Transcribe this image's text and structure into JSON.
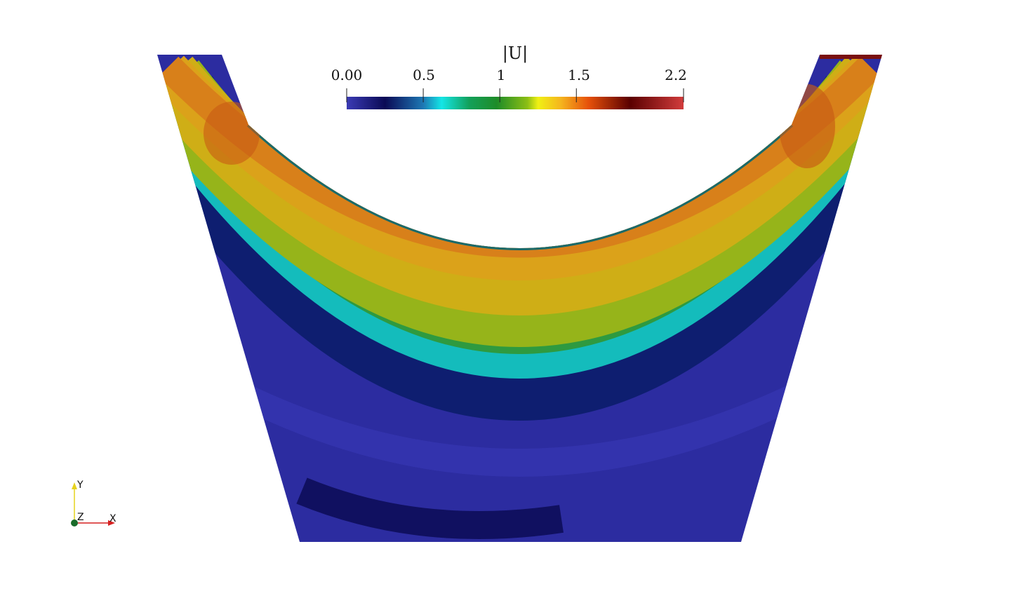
{
  "colorbar": {
    "title": "|U|",
    "ticks": [
      {
        "value": 0.0,
        "label": "0.00"
      },
      {
        "value": 0.5,
        "label": "0.5"
      },
      {
        "value": 1.0,
        "label": "1"
      },
      {
        "value": 1.5,
        "label": "1.5"
      },
      {
        "value": 2.2,
        "label": "2.2"
      }
    ],
    "range": [
      0.0,
      2.2
    ],
    "colormap": [
      {
        "v": 0.0,
        "color": "#3b3bb5"
      },
      {
        "v": 0.25,
        "color": "#0a0a55"
      },
      {
        "v": 0.5,
        "color": "#1e78b4"
      },
      {
        "v": 0.62,
        "color": "#14e6e6"
      },
      {
        "v": 0.8,
        "color": "#12a05a"
      },
      {
        "v": 0.98,
        "color": "#1e8c28"
      },
      {
        "v": 1.18,
        "color": "#8cbe14"
      },
      {
        "v": 1.25,
        "color": "#f0f014"
      },
      {
        "v": 1.4,
        "color": "#f5b41e"
      },
      {
        "v": 1.58,
        "color": "#e6500a"
      },
      {
        "v": 1.85,
        "color": "#5a0000"
      },
      {
        "v": 2.2,
        "color": "#d23c3c"
      }
    ]
  },
  "orientation_axes": {
    "x_label": "X",
    "y_label": "Y",
    "z_label": "Z",
    "x_color": "#d62020",
    "y_color": "#e6d21e",
    "z_color": "#1a6b2a"
  }
}
